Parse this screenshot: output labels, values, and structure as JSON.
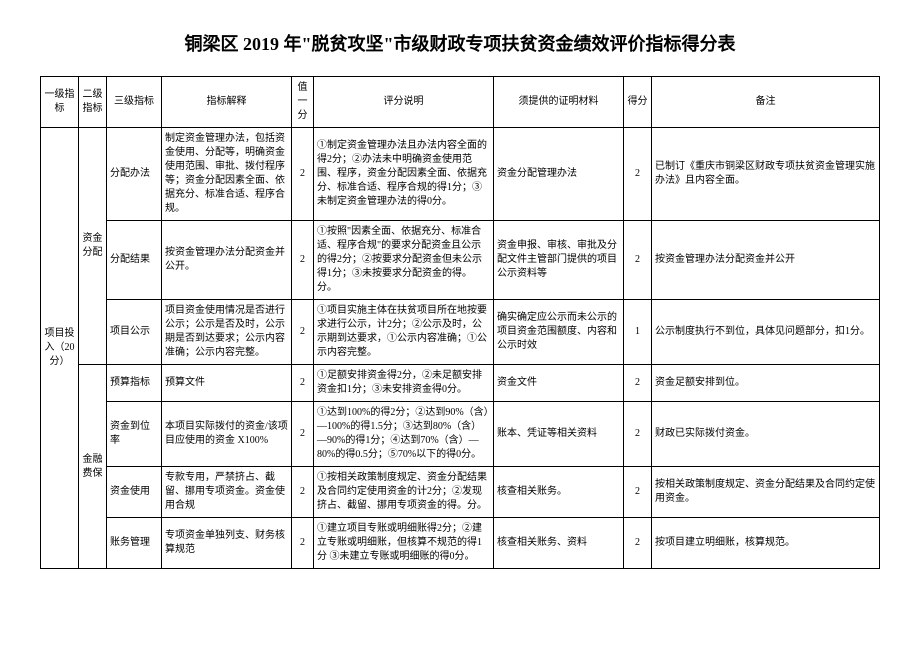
{
  "document": {
    "title": "铜梁区 2019 年\"脱贫攻坚\"市级财政专项扶贫资金绩效评价指标得分表",
    "headers": {
      "level1": "一级指标",
      "level2": "二级指标",
      "level3": "三级指标",
      "description": "指标解释",
      "value": "值一分",
      "explanation": "评分说明",
      "materials": "须提供的证明材料",
      "score": "得分",
      "notes": "备注"
    },
    "level1_label": "项目投入（20分）",
    "groups": [
      {
        "level2": "资金分配",
        "rows": [
          {
            "level3": "分配办法",
            "desc": "制定资金管理办法，包括资金使用、分配等，明确资金使用范围、审批、拨付程序等；资金分配因素全面、依据充分、标准合适、程序合规。",
            "value": "2",
            "explanation": "①制定资金管理办法且办法内容全面的得2分；②办法未中明确资金使用范围、程序，资金分配因素全面、依据充分、标准合适、程序合规的得1分；③未制定资金管理办法的得0分。",
            "materials": "资金分配管理办法",
            "score": "2",
            "notes": "已制订《重庆市铜梁区财政专项扶贫资金管理实施办法》且内容全面。"
          },
          {
            "level3": "分配结果",
            "desc": "按资金管理办法分配资金并公开。",
            "value": "2",
            "explanation": "①按照\"因素全面、依据充分、标准合适、程序合规\"的要求分配资金且公示的得2分；②按要求分配资金但未公示得1分；③未按要求分配资金的得。分。",
            "materials": "资金申报、审核、审批及分配文件主管部门提供的项目公示资料等",
            "score": "2",
            "notes": "按资金管理办法分配资金并公开"
          },
          {
            "level3": "项目公示",
            "desc": "项目资金使用情况是否进行公示；公示是否及时，公示期是否到达要求；公示内容准确；公示内容完整。",
            "value": "2",
            "explanation": "①项目实施主体在扶贫项目所在地按要求进行公示，计2分；②公示及时，公示期到达要求，①公示内容准确；①公示内容完整。",
            "materials": "确实确定应公示而未公示的项目资金范围额度、内容和公示时效",
            "score": "1",
            "notes": "公示制度执行不到位，具体见问题部分，扣1分。"
          }
        ]
      },
      {
        "level2": "金融费保",
        "rows": [
          {
            "level3": "预算指标",
            "desc": "预算文件",
            "value": "2",
            "explanation": "①足额安排资金得2分，②未足额安排资金扣1分；③未安排资金得0分。",
            "materials": "资金文件",
            "score": "2",
            "notes": "资金足额安排到位。"
          },
          {
            "level3": "资金到位率",
            "desc": "本项目实际拨付的资金/该项目应使用的资金 X100%",
            "value": "2",
            "explanation": "①达到100%的得2分；②达到90%（含）—100%的得1.5分；③达到80%（含）—90%的得1分；④达到70%（含）—80%的得0.5分；⑤70%以下的得0分。",
            "materials": "账本、凭证等相关资料",
            "score": "2",
            "notes": "财政已实际拨付资金。"
          },
          {
            "level3": "资金使用",
            "desc": "专款专用，严禁挤占、截留、挪用专项资金。资金使用合规",
            "value": "2",
            "explanation": "①按相关政策制度规定、资金分配结果及合同约定使用资金的计2分；②发现挤占、截留、挪用专项资金的得。分。",
            "materials": "核查相关账务。",
            "score": "2",
            "notes": "按相关政策制度规定、资金分配结果及合同约定使用资金。"
          },
          {
            "level3": "账务管理",
            "desc": "专项资金单独列支、财务核算规范",
            "value": "2",
            "explanation": "①建立项目专账或明细账得2分；②建立专账或明细账，但核算不规范的得1分 ③未建立专账或明细账的得0分。",
            "materials": "核查相关账务、资料",
            "score": "2",
            "notes": "按项目建立明细账，核算规范。"
          }
        ]
      }
    ]
  }
}
